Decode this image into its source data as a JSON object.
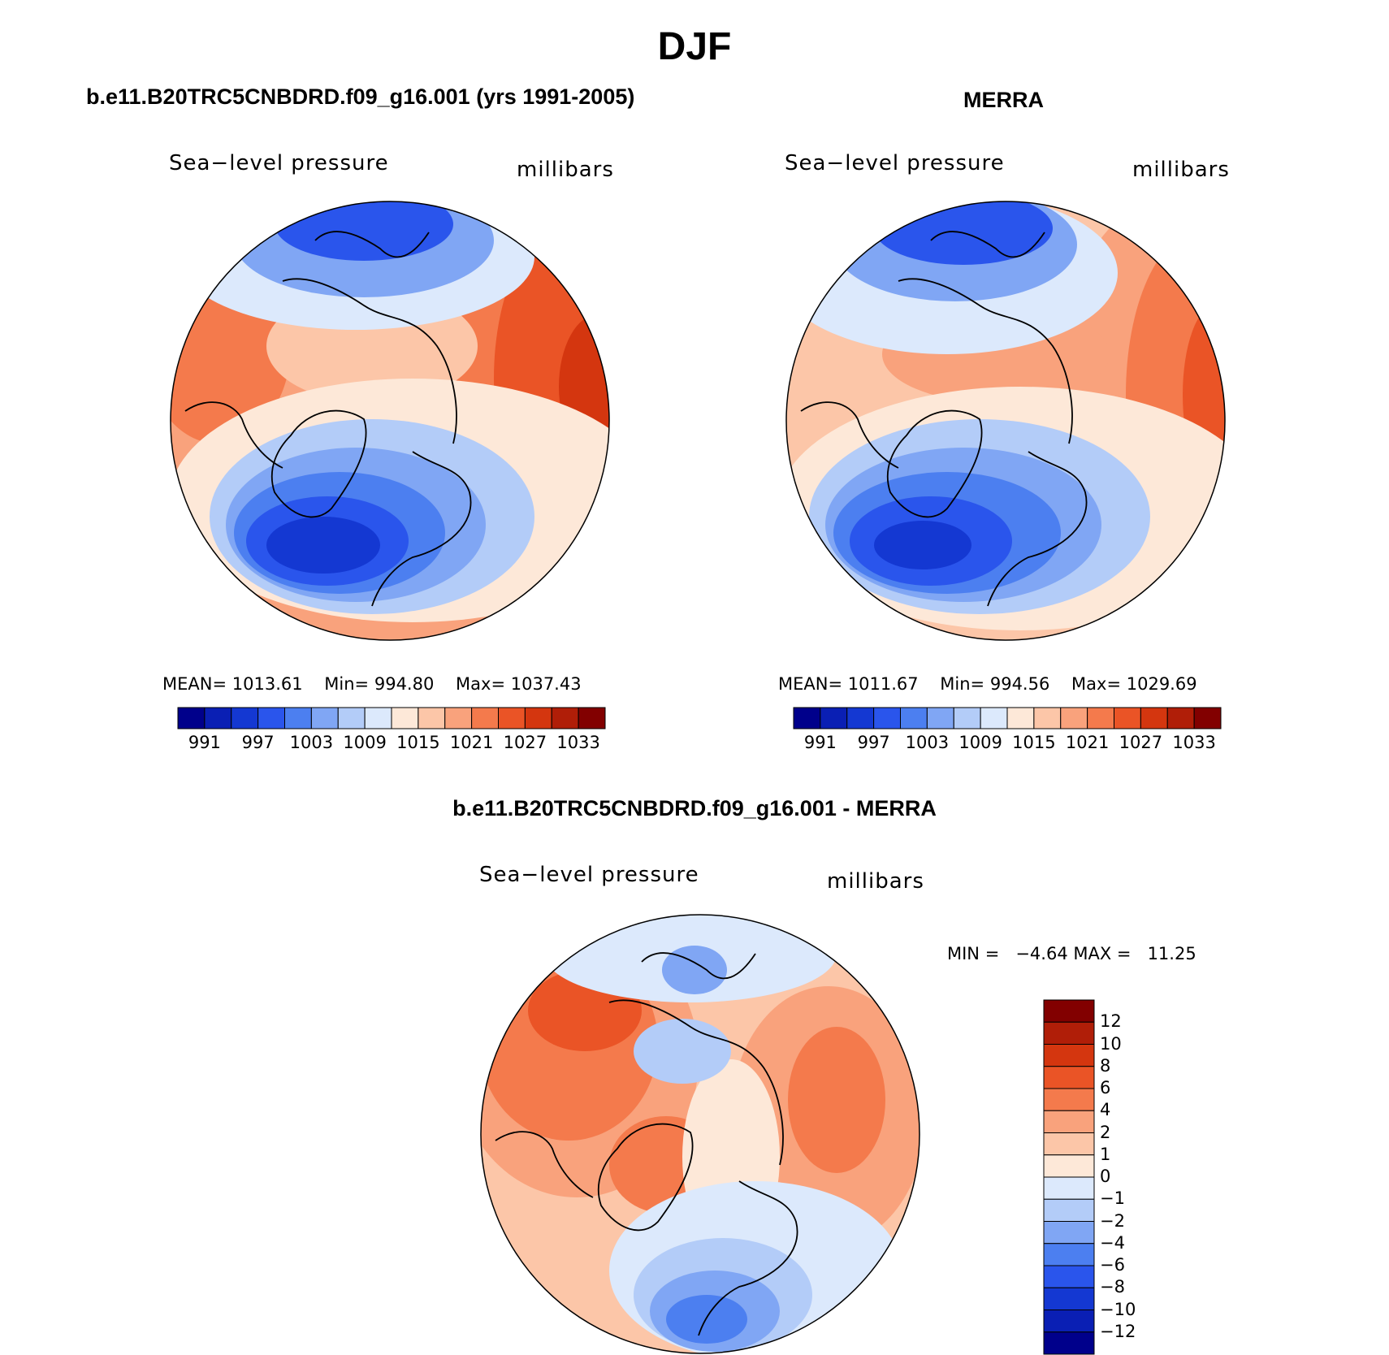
{
  "title": "DJF",
  "panels": [
    {
      "id": "model",
      "title": "b.e11.B20TRC5CNBDRD.f09_g16.001 (yrs 1991-2005)",
      "variable": "Sea−level pressure",
      "units": "millibars",
      "stats": {
        "mean_label": "MEAN=",
        "mean": "1013.61",
        "min_label": "Min=",
        "min": "994.80",
        "max_label": "Max=",
        "max": "1037.43"
      }
    },
    {
      "id": "obs",
      "title": "MERRA",
      "variable": "Sea−level pressure",
      "units": "millibars",
      "stats": {
        "mean_label": "MEAN=",
        "mean": "1011.67",
        "min_label": "Min=",
        "min": "994.56",
        "max_label": "Max=",
        "max": "1029.69"
      }
    },
    {
      "id": "diff",
      "title": "b.e11.B20TRC5CNBDRD.f09_g16.001 - MERRA",
      "variable": "Sea−level pressure",
      "units": "millibars",
      "stats": {
        "min_label": "MIN =",
        "min": "−4.64",
        "max_label": "MAX =",
        "max": "11.25"
      }
    }
  ],
  "colorbars": {
    "absolute": {
      "colors": [
        "#00008b",
        "#0a1fb4",
        "#1438d2",
        "#2a55ec",
        "#4c7ff0",
        "#80a6f4",
        "#b3ccf8",
        "#dce9fc",
        "#fde8d8",
        "#fcc6a8",
        "#f9a27c",
        "#f47a4c",
        "#ea5426",
        "#d4360f",
        "#b01e08",
        "#820000"
      ],
      "labels": [
        "991",
        "997",
        "1003",
        "1009",
        "1015",
        "1021",
        "1027",
        "1033"
      ]
    },
    "difference": {
      "colors": [
        "#820000",
        "#b01e08",
        "#d4360f",
        "#ea5426",
        "#f47a4c",
        "#f9a27c",
        "#fcc6a8",
        "#fde8d8",
        "#dce9fc",
        "#b3ccf8",
        "#80a6f4",
        "#4c7ff0",
        "#2a55ec",
        "#1438d2",
        "#0a1fb4",
        "#00008b"
      ],
      "labels": [
        "12",
        "10",
        "8",
        "6",
        "4",
        "2",
        "1",
        "0",
        "−1",
        "−2",
        "−4",
        "−6",
        "−8",
        "−10",
        "−12"
      ]
    }
  }
}
